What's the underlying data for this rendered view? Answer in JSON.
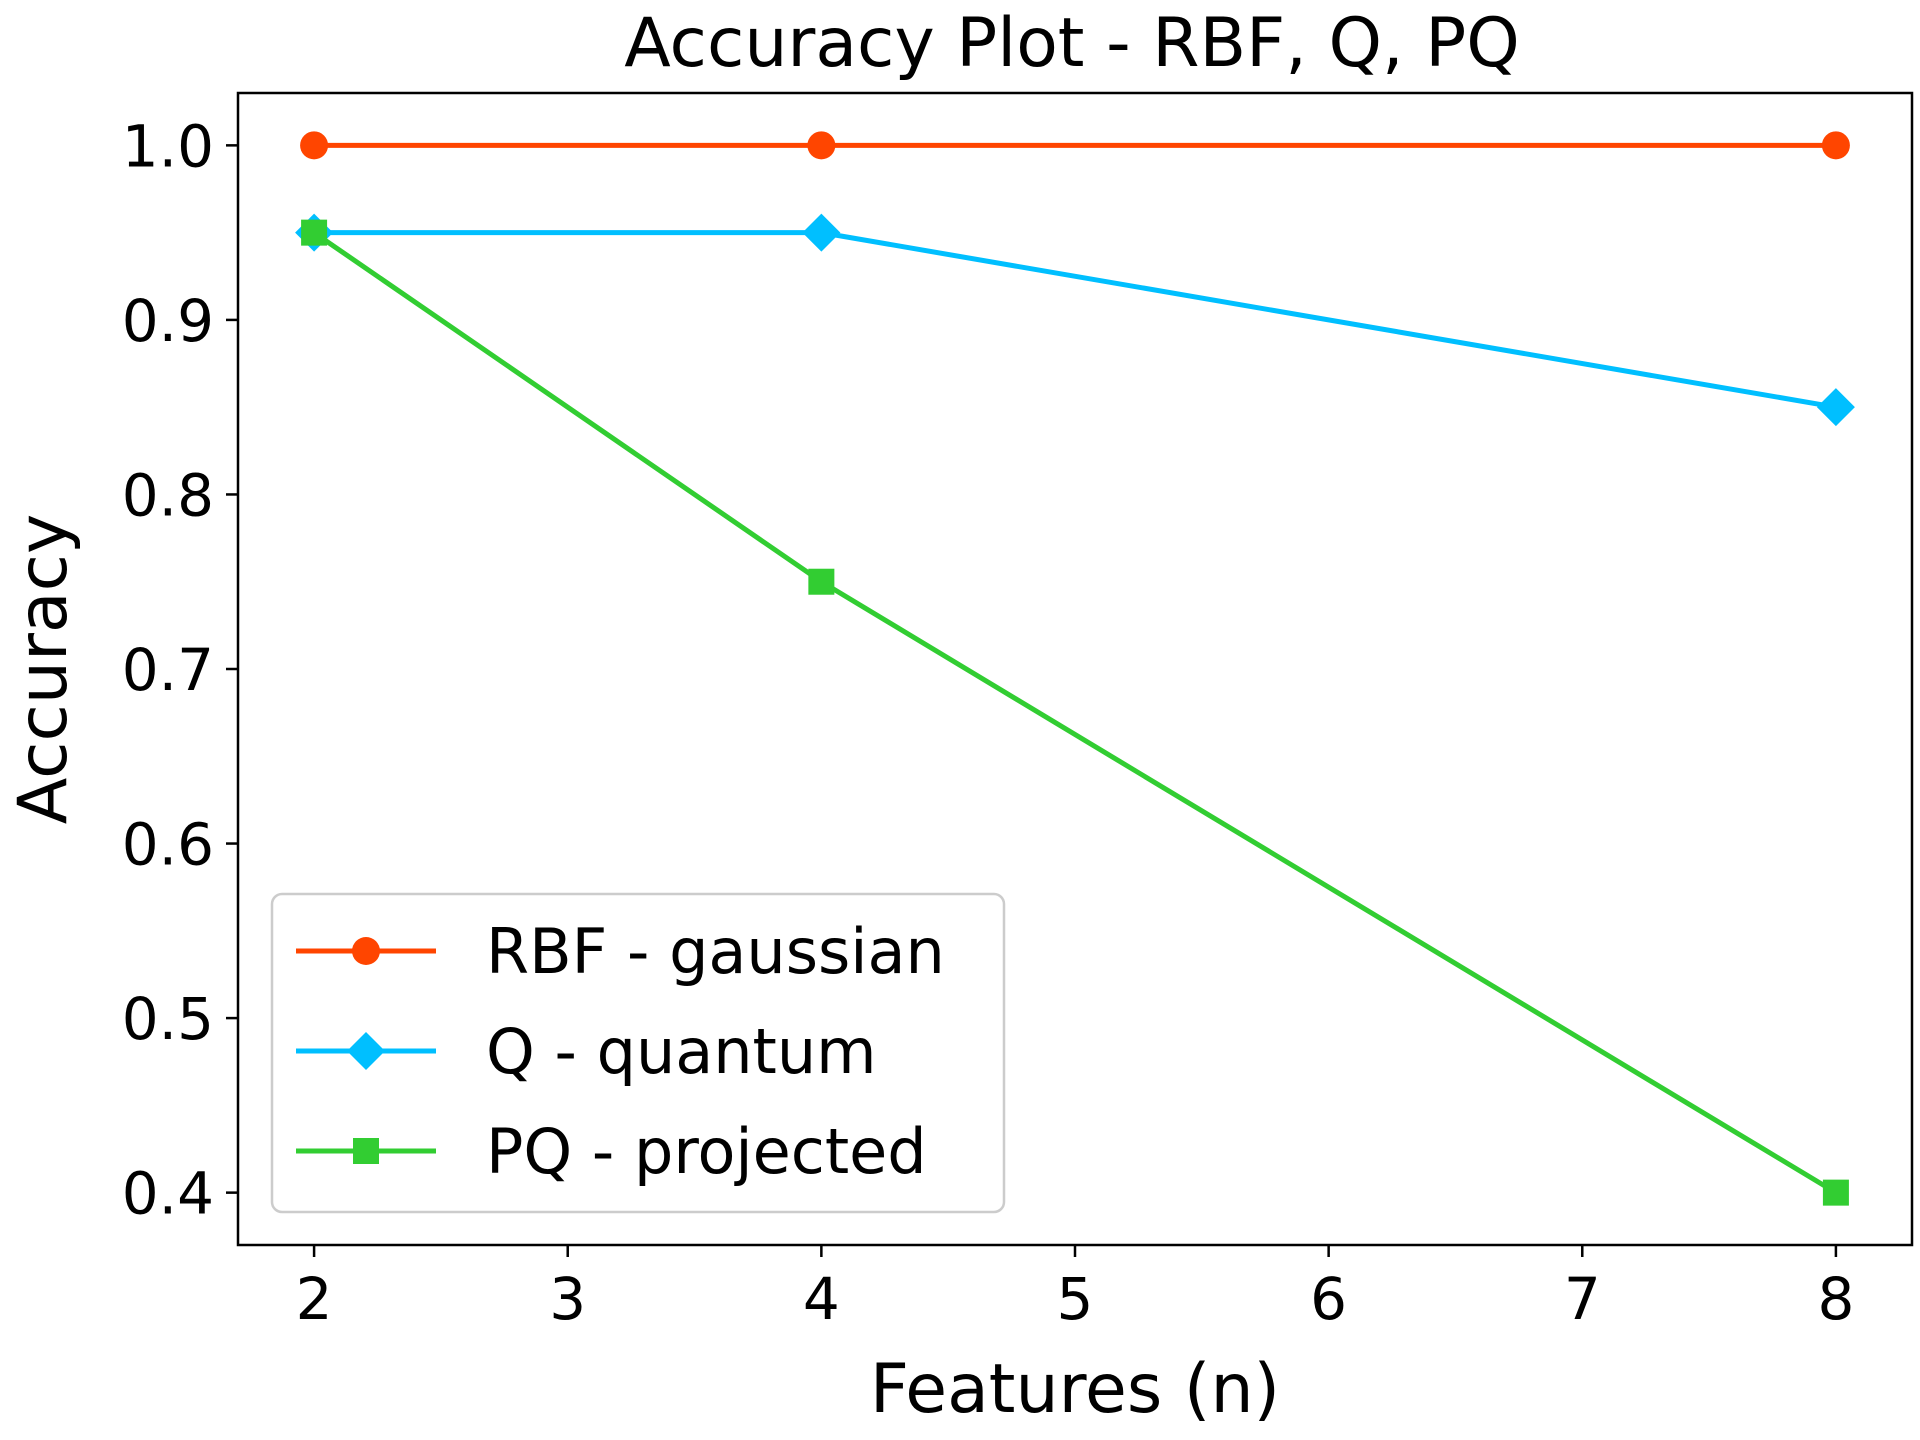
{
  "chart_data": {
    "type": "line",
    "title": "Accuracy Plot - RBF, Q, PQ",
    "xlabel": "Features (n)",
    "ylabel": "Accuracy",
    "xlim": [
      1.7,
      8.3
    ],
    "ylim": [
      0.37,
      1.03
    ],
    "xticks": [
      2,
      3,
      4,
      5,
      6,
      7,
      8
    ],
    "yticks": [
      0.4,
      0.5,
      0.6,
      0.7,
      0.8,
      0.9,
      1.0
    ],
    "xtick_labels": [
      "2",
      "3",
      "4",
      "5",
      "6",
      "7",
      "8"
    ],
    "ytick_labels": [
      "0.4",
      "0.5",
      "0.6",
      "0.7",
      "0.8",
      "0.9",
      "1.0"
    ],
    "grid": false,
    "legend_position": "lower-left",
    "series": [
      {
        "name": "RBF - gaussian",
        "marker": "circle",
        "color": "#ff4500",
        "x": [
          2,
          4,
          8
        ],
        "y": [
          1.0,
          1.0,
          1.0
        ]
      },
      {
        "name": "Q - quantum",
        "marker": "diamond",
        "color": "#00bfff",
        "x": [
          2,
          4,
          8
        ],
        "y": [
          0.95,
          0.95,
          0.85
        ]
      },
      {
        "name": "PQ - projected",
        "marker": "square",
        "color": "#32cd32",
        "x": [
          2,
          4,
          8
        ],
        "y": [
          0.95,
          0.75,
          0.4
        ]
      }
    ]
  }
}
